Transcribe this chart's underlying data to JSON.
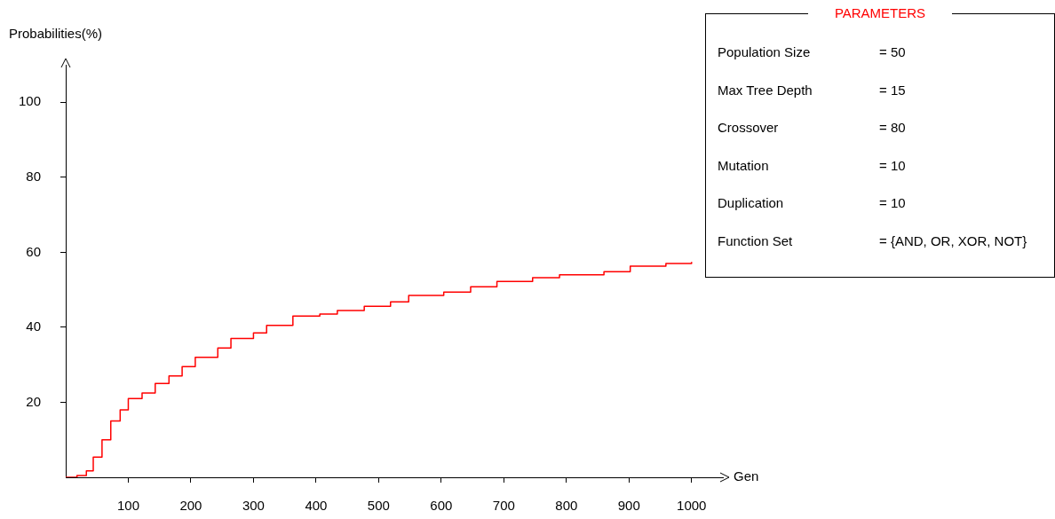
{
  "chart_data": {
    "type": "step",
    "xlabel": "Gen",
    "ylabel": "Probabilities(%)",
    "x": [
      0,
      15,
      18,
      33,
      44,
      58,
      72,
      87,
      100,
      122,
      143,
      165,
      186,
      207,
      243,
      264,
      300,
      321,
      363,
      406,
      434,
      477,
      519,
      548,
      604,
      647,
      689,
      746,
      789,
      860,
      902,
      959,
      1000
    ],
    "series": [
      {
        "color": "#ff0000",
        "values": [
          0,
          0,
          0.5,
          1.7,
          5.4,
          10,
          15,
          18,
          21,
          22.5,
          25,
          27,
          29.5,
          32,
          34.5,
          37,
          38.5,
          40.5,
          43,
          43.5,
          44.5,
          45.6,
          46.8,
          48.5,
          49.4,
          50.8,
          52.2,
          53.2,
          54,
          54.8,
          56.3,
          57,
          57.4
        ]
      }
    ],
    "xlim": [
      0,
      1050
    ],
    "xticks": [
      100,
      200,
      300,
      400,
      500,
      600,
      700,
      800,
      900,
      1000
    ],
    "ylim": [
      0,
      110
    ],
    "yticks": [
      20,
      40,
      60,
      80,
      100
    ],
    "grid": false,
    "legend": false,
    "annotations": [
      "PARAMETERS",
      "Population Size",
      "= 50",
      "Max Tree Depth",
      "= 15",
      "Crossover",
      "= 80",
      "Mutation",
      "= 10",
      "Duplication",
      "= 10",
      "Function Set",
      "= {AND, OR, XOR, NOT}"
    ]
  }
}
